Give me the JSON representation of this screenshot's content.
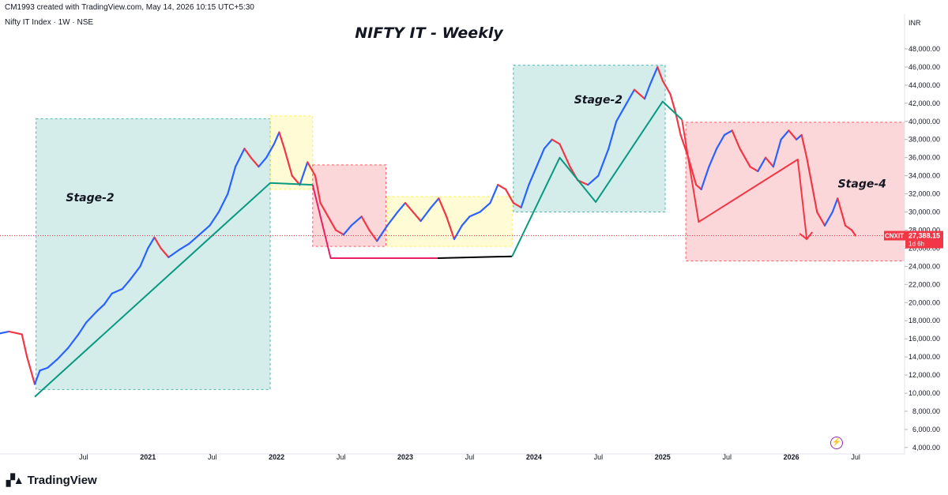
{
  "header": {
    "author_line": "CM1993 created with TradingView.com, May 14, 2026 10:15 UTC+5:30",
    "symbol_line": "Nifty IT Index · 1W · NSE"
  },
  "footer": {
    "brand": "TradingView",
    "logo_icon": "tradingview-logo-icon"
  },
  "price_tag": {
    "ticker": "CNXIT",
    "price": "27,388.15",
    "countdown": "1d 6h",
    "color": "#f23645"
  },
  "chart_data": {
    "type": "line",
    "title": "NIFTY IT - Weekly",
    "currency": "INR",
    "xlabel": "",
    "ylabel": "",
    "ylim": [
      4000,
      50000
    ],
    "y_ticks": [
      "4,000.00",
      "6,000.00",
      "8,000.00",
      "10,000.00",
      "12,000.00",
      "14,000.00",
      "16,000.00",
      "18,000.00",
      "20,000.00",
      "22,000.00",
      "24,000.00",
      "26,000.00",
      "28,000.00",
      "30,000.00",
      "32,000.00",
      "34,000.00",
      "36,000.00",
      "38,000.00",
      "40,000.00",
      "42,000.00",
      "44,000.00",
      "46,000.00",
      "48,000.00"
    ],
    "x_ticks": [
      {
        "label": "Jul",
        "t": 2020.5,
        "major": false
      },
      {
        "label": "2021",
        "t": 2021.0,
        "major": true
      },
      {
        "label": "Jul",
        "t": 2021.5,
        "major": false
      },
      {
        "label": "2022",
        "t": 2022.0,
        "major": true
      },
      {
        "label": "Jul",
        "t": 2022.5,
        "major": false
      },
      {
        "label": "2023",
        "t": 2023.0,
        "major": true
      },
      {
        "label": "Jul",
        "t": 2023.5,
        "major": false
      },
      {
        "label": "2024",
        "t": 2024.0,
        "major": true
      },
      {
        "label": "Jul",
        "t": 2024.5,
        "major": false
      },
      {
        "label": "2025",
        "t": 2025.0,
        "major": true
      },
      {
        "label": "Jul",
        "t": 2025.5,
        "major": false
      },
      {
        "label": "2026",
        "t": 2026.0,
        "major": true
      },
      {
        "label": "Jul",
        "t": 2026.5,
        "major": false
      }
    ],
    "xlim": [
      2019.85,
      2026.88
    ],
    "last_price": 27388.15,
    "price_path": [
      [
        2019.85,
        16600
      ],
      [
        2019.92,
        16800
      ],
      [
        2020.02,
        16500
      ],
      [
        2020.06,
        14000
      ],
      [
        2020.12,
        11000
      ],
      [
        2020.16,
        12500
      ],
      [
        2020.22,
        12800
      ],
      [
        2020.3,
        13800
      ],
      [
        2020.38,
        15000
      ],
      [
        2020.46,
        16500
      ],
      [
        2020.52,
        17800
      ],
      [
        2020.6,
        19000
      ],
      [
        2020.66,
        19800
      ],
      [
        2020.72,
        21000
      ],
      [
        2020.8,
        21500
      ],
      [
        2020.86,
        22500
      ],
      [
        2020.94,
        24000
      ],
      [
        2021.0,
        26000
      ],
      [
        2021.05,
        27200
      ],
      [
        2021.1,
        26000
      ],
      [
        2021.16,
        25000
      ],
      [
        2021.24,
        25800
      ],
      [
        2021.32,
        26500
      ],
      [
        2021.4,
        27500
      ],
      [
        2021.48,
        28500
      ],
      [
        2021.55,
        30000
      ],
      [
        2021.62,
        32000
      ],
      [
        2021.68,
        35000
      ],
      [
        2021.75,
        37000
      ],
      [
        2021.8,
        36000
      ],
      [
        2021.86,
        35000
      ],
      [
        2021.92,
        36000
      ],
      [
        2021.98,
        37500
      ],
      [
        2022.02,
        38800
      ],
      [
        2022.06,
        37000
      ],
      [
        2022.12,
        34000
      ],
      [
        2022.18,
        33000
      ],
      [
        2022.24,
        35500
      ],
      [
        2022.3,
        34000
      ],
      [
        2022.34,
        31000
      ],
      [
        2022.4,
        29500
      ],
      [
        2022.46,
        28000
      ],
      [
        2022.52,
        27500
      ],
      [
        2022.58,
        28500
      ],
      [
        2022.66,
        29500
      ],
      [
        2022.72,
        28000
      ],
      [
        2022.78,
        26800
      ],
      [
        2022.86,
        28500
      ],
      [
        2022.94,
        30000
      ],
      [
        2023.0,
        31000
      ],
      [
        2023.06,
        30000
      ],
      [
        2023.12,
        29000
      ],
      [
        2023.2,
        30500
      ],
      [
        2023.26,
        31500
      ],
      [
        2023.32,
        29500
      ],
      [
        2023.38,
        27000
      ],
      [
        2023.44,
        28500
      ],
      [
        2023.5,
        29500
      ],
      [
        2023.58,
        30000
      ],
      [
        2023.66,
        31000
      ],
      [
        2023.72,
        33000
      ],
      [
        2023.78,
        32500
      ],
      [
        2023.84,
        31000
      ],
      [
        2023.9,
        30500
      ],
      [
        2023.96,
        33000
      ],
      [
        2024.02,
        35000
      ],
      [
        2024.08,
        37000
      ],
      [
        2024.14,
        38000
      ],
      [
        2024.2,
        37500
      ],
      [
        2024.28,
        35000
      ],
      [
        2024.34,
        33500
      ],
      [
        2024.42,
        33000
      ],
      [
        2024.5,
        34000
      ],
      [
        2024.58,
        37000
      ],
      [
        2024.64,
        40000
      ],
      [
        2024.72,
        42000
      ],
      [
        2024.78,
        43500
      ],
      [
        2024.86,
        42500
      ],
      [
        2024.9,
        44000
      ],
      [
        2024.96,
        46000
      ],
      [
        2025.0,
        44500
      ],
      [
        2025.06,
        43000
      ],
      [
        2025.1,
        41000
      ],
      [
        2025.14,
        38500
      ],
      [
        2025.2,
        36000
      ],
      [
        2025.26,
        33000
      ],
      [
        2025.3,
        32500
      ],
      [
        2025.36,
        35000
      ],
      [
        2025.42,
        37000
      ],
      [
        2025.48,
        38500
      ],
      [
        2025.54,
        39000
      ],
      [
        2025.6,
        37000
      ],
      [
        2025.68,
        35000
      ],
      [
        2025.74,
        34500
      ],
      [
        2025.8,
        36000
      ],
      [
        2025.86,
        35000
      ],
      [
        2025.92,
        38000
      ],
      [
        2025.98,
        39000
      ],
      [
        2026.04,
        38000
      ],
      [
        2026.08,
        38500
      ],
      [
        2026.12,
        36000
      ],
      [
        2026.16,
        33000
      ],
      [
        2026.2,
        30000
      ],
      [
        2026.26,
        28500
      ],
      [
        2026.32,
        30000
      ],
      [
        2026.36,
        31500
      ],
      [
        2026.42,
        28500
      ],
      [
        2026.47,
        28000
      ],
      [
        2026.5,
        27388
      ]
    ],
    "zones": [
      {
        "name": "stage2-zone-1",
        "x0": 2020.13,
        "x1": 2021.95,
        "y0": 10400,
        "y1": 40300,
        "fill": "#26a69a",
        "opacity": 0.2
      },
      {
        "name": "transition-zone-1",
        "x0": 2021.95,
        "x1": 2022.28,
        "y0": 32500,
        "y1": 40600,
        "fill": "#ffeb3b",
        "opacity": 0.22
      },
      {
        "name": "decline-zone-1",
        "x0": 2022.28,
        "x1": 2022.85,
        "y0": 26200,
        "y1": 35200,
        "fill": "#f23645",
        "opacity": 0.2
      },
      {
        "name": "range-zone",
        "x0": 2022.86,
        "x1": 2023.83,
        "y0": 26200,
        "y1": 31700,
        "fill": "#ffeb3b",
        "opacity": 0.22
      },
      {
        "name": "stage2-zone-2",
        "x0": 2023.84,
        "x1": 2025.02,
        "y0": 30000,
        "y1": 46200,
        "fill": "#26a69a",
        "opacity": 0.2
      },
      {
        "name": "stage4-zone",
        "x0": 2025.18,
        "x1": 2026.88,
        "y0": 24600,
        "y1": 39900,
        "fill": "#f23645",
        "opacity": 0.2
      }
    ],
    "trendlines": [
      {
        "name": "uptrend-line-1",
        "color": "#089981",
        "points": [
          [
            2020.12,
            9600
          ],
          [
            2021.95,
            33200
          ],
          [
            2022.28,
            33000
          ]
        ]
      },
      {
        "name": "downtrend-line-1",
        "color": "#e91e63",
        "points": [
          [
            2022.28,
            33000
          ],
          [
            2022.42,
            24900
          ],
          [
            2023.25,
            24900
          ]
        ]
      },
      {
        "name": "base-line",
        "color": "#000000",
        "points": [
          [
            2023.25,
            24900
          ],
          [
            2023.83,
            25100
          ]
        ]
      },
      {
        "name": "uptrend-line-2",
        "color": "#089981",
        "points": [
          [
            2023.83,
            25100
          ],
          [
            2024.2,
            36000
          ],
          [
            2024.48,
            31100
          ],
          [
            2025.0,
            42200
          ],
          [
            2025.15,
            40200
          ]
        ]
      },
      {
        "name": "downtrend-line-2",
        "color": "#f23645",
        "points": [
          [
            2025.15,
            40200
          ],
          [
            2025.28,
            28900
          ],
          [
            2026.05,
            35800
          ],
          [
            2026.12,
            27000
          ]
        ]
      }
    ],
    "annotations": [
      {
        "text": "Stage-2",
        "x": 2020.55,
        "y": 31200
      },
      {
        "text": "Stage-2",
        "x": 2024.5,
        "y": 42000
      },
      {
        "text": "Stage-4",
        "x": 2026.55,
        "y": 32700
      }
    ]
  }
}
